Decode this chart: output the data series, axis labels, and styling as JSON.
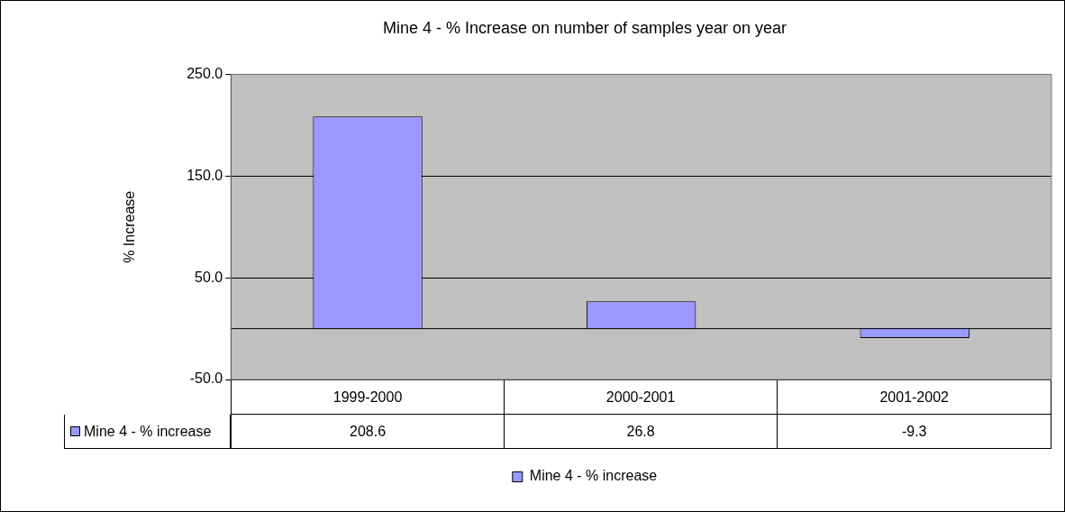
{
  "chart_data": {
    "type": "bar",
    "title": "Mine 4 - % Increase on number of samples year on year",
    "ylabel": "% Increase",
    "categories": [
      "1999-2000",
      "2000-2001",
      "2001-2002"
    ],
    "series": [
      {
        "name": "Mine 4 - % increase",
        "color": "#9999ff",
        "values": [
          208.6,
          26.8,
          -9.3
        ]
      }
    ],
    "ylim": [
      -50,
      250
    ],
    "yticks": [
      {
        "value": -50,
        "label": "-50.0"
      },
      {
        "value": 50,
        "label": "50.0"
      },
      {
        "value": 150,
        "label": "150.0"
      },
      {
        "value": 250,
        "label": "250.0"
      }
    ],
    "grid": "y",
    "legend": "bottom",
    "data_labels": true
  }
}
